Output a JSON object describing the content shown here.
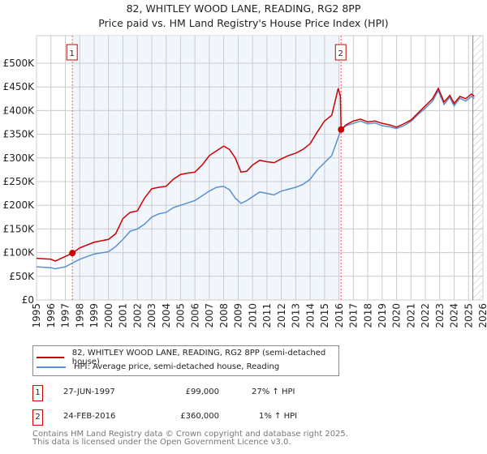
{
  "title_line1": "82, WHITLEY WOOD LANE, READING, RG2 8PP",
  "title_line2": "Price paid vs. HM Land Registry's House Price Index (HPI)",
  "chart_data": {
    "type": "line",
    "xlim": [
      1995,
      2026
    ],
    "ylim": [
      0,
      500000
    ],
    "x_ticks": [
      "1995",
      "1996",
      "1997",
      "1998",
      "1999",
      "2000",
      "2001",
      "2002",
      "2003",
      "2004",
      "2005",
      "2006",
      "2007",
      "2008",
      "2009",
      "2010",
      "2011",
      "2012",
      "2013",
      "2014",
      "2015",
      "2016",
      "2017",
      "2018",
      "2019",
      "2020",
      "2021",
      "2022",
      "2023",
      "2024",
      "2025",
      "2026"
    ],
    "y_ticks": [
      {
        "v": 0,
        "label": "£0"
      },
      {
        "v": 50000,
        "label": "£50K"
      },
      {
        "v": 100000,
        "label": "£100K"
      },
      {
        "v": 150000,
        "label": "£150K"
      },
      {
        "v": 200000,
        "label": "£200K"
      },
      {
        "v": 250000,
        "label": "£250K"
      },
      {
        "v": 300000,
        "label": "£300K"
      },
      {
        "v": 350000,
        "label": "£350K"
      },
      {
        "v": 400000,
        "label": "£400K"
      },
      {
        "v": 450000,
        "label": "£450K"
      },
      {
        "v": 500000,
        "label": "£500K"
      }
    ],
    "grid": true,
    "series": [
      {
        "name": "82, WHITLEY WOOD LANE, READING, RG2 8PP (semi-detached house)",
        "color": "#cc0000",
        "x": [
          1995,
          1996,
          1996.3,
          1997,
          1997.49,
          1998,
          1999,
          2000,
          2000.5,
          2001,
          2001.5,
          2002,
          2002.5,
          2003,
          2003.5,
          2004,
          2004.5,
          2005,
          2005.5,
          2006,
          2006.5,
          2007,
          2007.5,
          2008,
          2008.4,
          2008.8,
          2009.2,
          2009.6,
          2010,
          2010.5,
          2011,
          2011.5,
          2012,
          2012.5,
          2013,
          2013.5,
          2014,
          2014.5,
          2015,
          2015.5,
          2015.95,
          2016.1,
          2016.15,
          2016.5,
          2017,
          2017.5,
          2018,
          2018.5,
          2019,
          2019.5,
          2020,
          2020.5,
          2021,
          2021.5,
          2022,
          2022.5,
          2022.9,
          2023.3,
          2023.7,
          2024,
          2024.4,
          2024.8,
          2025.2,
          2025.4
        ],
        "y": [
          88000,
          86000,
          82000,
          92000,
          99000,
          110000,
          122000,
          128000,
          140000,
          172000,
          185000,
          188000,
          215000,
          235000,
          238000,
          240000,
          255000,
          265000,
          268000,
          270000,
          285000,
          305000,
          315000,
          325000,
          318000,
          300000,
          270000,
          272000,
          285000,
          295000,
          292000,
          290000,
          298000,
          305000,
          310000,
          318000,
          330000,
          355000,
          378000,
          390000,
          447000,
          430000,
          360000,
          370000,
          378000,
          382000,
          376000,
          378000,
          373000,
          370000,
          365000,
          372000,
          380000,
          395000,
          410000,
          425000,
          447000,
          418000,
          432000,
          415000,
          430000,
          425000,
          435000,
          430000
        ]
      },
      {
        "name": "HPI: Average price, semi-detached house, Reading",
        "color": "#5b8fd0",
        "x": [
          1995,
          1996,
          1996.3,
          1997,
          1997.49,
          1998,
          1999,
          2000,
          2000.5,
          2001,
          2001.5,
          2002,
          2002.5,
          2003,
          2003.5,
          2004,
          2004.5,
          2005,
          2005.5,
          2006,
          2006.5,
          2007,
          2007.5,
          2008,
          2008.4,
          2008.8,
          2009.2,
          2009.6,
          2010,
          2010.5,
          2011,
          2011.5,
          2012,
          2012.5,
          2013,
          2013.5,
          2014,
          2014.5,
          2015,
          2015.5,
          2016.15,
          2016.5,
          2017,
          2017.5,
          2018,
          2018.5,
          2019,
          2019.5,
          2020,
          2020.5,
          2021,
          2021.5,
          2022,
          2022.5,
          2022.9,
          2023.3,
          2023.7,
          2024,
          2024.4,
          2024.8,
          2025.2,
          2025.4
        ],
        "y": [
          70000,
          68000,
          66000,
          70000,
          78000,
          86000,
          97000,
          102000,
          113000,
          128000,
          145000,
          150000,
          160000,
          175000,
          182000,
          185000,
          195000,
          200000,
          205000,
          210000,
          220000,
          230000,
          238000,
          240000,
          233000,
          215000,
          204000,
          210000,
          218000,
          228000,
          225000,
          222000,
          230000,
          234000,
          238000,
          244000,
          255000,
          275000,
          290000,
          305000,
          360000,
          368000,
          373000,
          378000,
          372000,
          374000,
          368000,
          366000,
          362000,
          368000,
          377000,
          392000,
          405000,
          420000,
          442000,
          413000,
          428000,
          410000,
          426000,
          420000,
          430000,
          425000
        ]
      }
    ],
    "annotations": [
      {
        "label": "1",
        "x": 1997.49,
        "y": 99000
      },
      {
        "label": "2",
        "x": 2016.15,
        "y": 360000
      }
    ],
    "legend_position": "below"
  },
  "legend": [
    {
      "label": "82, WHITLEY WOOD LANE, READING, RG2 8PP (semi-detached house)",
      "color": "#cc0000"
    },
    {
      "label": "HPI: Average price, semi-detached house, Reading",
      "color": "#5b8fd0"
    }
  ],
  "transactions": [
    {
      "num": "1",
      "date": "27-JUN-1997",
      "price": "£99,000",
      "hpi": "27% ↑ HPI"
    },
    {
      "num": "2",
      "date": "24-FEB-2016",
      "price": "£360,000",
      "hpi": "1% ↑ HPI"
    }
  ],
  "footer_line1": "Contains HM Land Registry data © Crown copyright and database right 2025.",
  "footer_line2": "This data is licensed under the Open Government Licence v3.0."
}
